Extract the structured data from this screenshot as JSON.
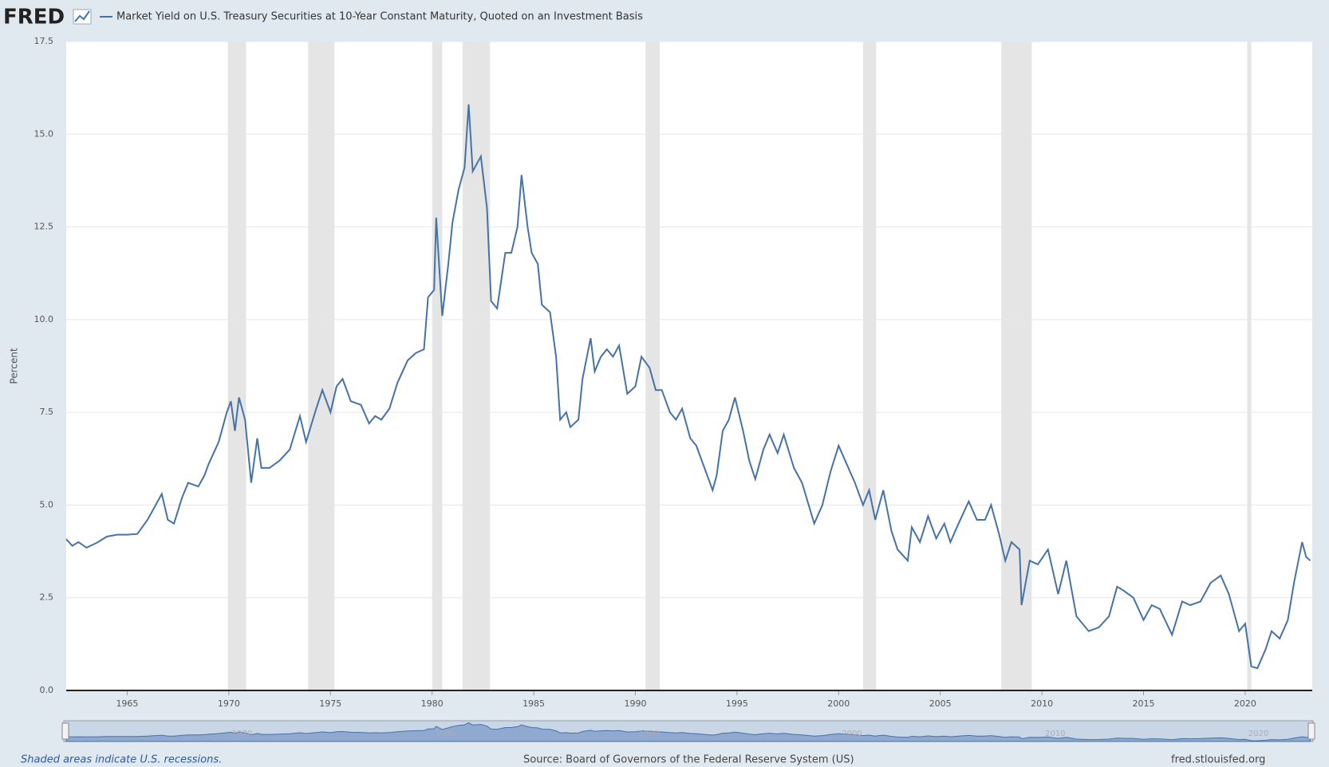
{
  "header": {
    "logo": "FRED"
  },
  "chart_data": {
    "type": "line",
    "y_axis_label": "Percent",
    "series": [
      {
        "name": "Market Yield on U.S. Treasury Securities at 10-Year Constant Maturity, Quoted on an Investment Basis",
        "color": "#4572a7",
        "x": [
          1962.0,
          1962.3,
          1962.6,
          1963.0,
          1963.5,
          1964.0,
          1964.5,
          1965.0,
          1965.5,
          1966.0,
          1966.3,
          1966.7,
          1967.0,
          1967.3,
          1967.7,
          1968.0,
          1968.5,
          1968.8,
          1969.0,
          1969.5,
          1969.9,
          1970.1,
          1970.3,
          1970.5,
          1970.8,
          1971.1,
          1971.4,
          1971.6,
          1972.0,
          1972.5,
          1973.0,
          1973.5,
          1973.8,
          1974.3,
          1974.6,
          1975.0,
          1975.3,
          1975.6,
          1976.0,
          1976.5,
          1976.9,
          1977.2,
          1977.5,
          1977.9,
          1978.3,
          1978.8,
          1979.2,
          1979.6,
          1979.8,
          1980.1,
          1980.2,
          1980.5,
          1980.8,
          1981.0,
          1981.3,
          1981.6,
          1981.8,
          1982.0,
          1982.4,
          1982.7,
          1982.9,
          1983.2,
          1983.6,
          1983.9,
          1984.2,
          1984.4,
          1984.7,
          1984.9,
          1985.2,
          1985.4,
          1985.8,
          1986.1,
          1986.3,
          1986.6,
          1986.8,
          1987.2,
          1987.4,
          1987.8,
          1988.0,
          1988.3,
          1988.6,
          1988.9,
          1989.2,
          1989.6,
          1990.0,
          1990.3,
          1990.7,
          1991.0,
          1991.3,
          1991.7,
          1992.0,
          1992.3,
          1992.7,
          1993.0,
          1993.4,
          1993.8,
          1994.0,
          1994.3,
          1994.6,
          1994.9,
          1995.3,
          1995.6,
          1995.9,
          1996.3,
          1996.6,
          1997.0,
          1997.3,
          1997.8,
          1998.2,
          1998.8,
          1999.2,
          1999.6,
          2000.0,
          2000.4,
          2000.8,
          2001.2,
          2001.5,
          2001.8,
          2002.0,
          2002.2,
          2002.6,
          2002.9,
          2003.4,
          2003.6,
          2004.0,
          2004.4,
          2004.8,
          2005.2,
          2005.5,
          2005.9,
          2006.4,
          2006.8,
          2007.2,
          2007.5,
          2007.9,
          2008.2,
          2008.5,
          2008.9,
          2009.0,
          2009.4,
          2009.8,
          2010.3,
          2010.8,
          2011.2,
          2011.7,
          2012.3,
          2012.8,
          2013.3,
          2013.7,
          2014.0,
          2014.5,
          2015.0,
          2015.4,
          2015.8,
          2016.4,
          2016.9,
          2017.3,
          2017.8,
          2018.3,
          2018.8,
          2019.2,
          2019.7,
          2020.0,
          2020.3,
          2020.6,
          2021.0,
          2021.3,
          2021.7,
          2022.1,
          2022.4,
          2022.8,
          2023.0,
          2023.2
        ],
        "values": [
          4.08,
          3.9,
          4.0,
          3.85,
          3.98,
          4.15,
          4.2,
          4.2,
          4.22,
          4.6,
          4.9,
          5.3,
          4.6,
          4.5,
          5.2,
          5.6,
          5.5,
          5.8,
          6.1,
          6.7,
          7.5,
          7.8,
          7.0,
          7.9,
          7.3,
          5.6,
          6.8,
          6.0,
          6.0,
          6.2,
          6.5,
          7.4,
          6.7,
          7.6,
          8.1,
          7.5,
          8.2,
          8.4,
          7.8,
          7.7,
          7.2,
          7.4,
          7.3,
          7.6,
          8.3,
          8.9,
          9.1,
          9.2,
          10.6,
          10.8,
          12.75,
          10.1,
          11.5,
          12.6,
          13.5,
          14.1,
          15.8,
          14.0,
          14.4,
          13.0,
          10.5,
          10.3,
          11.8,
          11.8,
          12.5,
          13.9,
          12.5,
          11.8,
          11.5,
          10.4,
          10.2,
          9.0,
          7.3,
          7.5,
          7.1,
          7.3,
          8.4,
          9.5,
          8.6,
          9.0,
          9.2,
          9.0,
          9.3,
          8.0,
          8.2,
          9.0,
          8.7,
          8.1,
          8.1,
          7.5,
          7.3,
          7.6,
          6.8,
          6.6,
          6.0,
          5.4,
          5.8,
          7.0,
          7.3,
          7.9,
          7.0,
          6.2,
          5.7,
          6.5,
          6.9,
          6.4,
          6.9,
          6.0,
          5.6,
          4.5,
          5.0,
          5.9,
          6.6,
          6.1,
          5.6,
          5.0,
          5.4,
          4.6,
          5.0,
          5.4,
          4.3,
          3.8,
          3.5,
          4.4,
          4.0,
          4.7,
          4.1,
          4.5,
          4.0,
          4.5,
          5.1,
          4.6,
          4.6,
          5.0,
          4.2,
          3.5,
          4.0,
          3.8,
          2.3,
          3.5,
          3.4,
          3.8,
          2.6,
          3.5,
          2.0,
          1.6,
          1.7,
          2.0,
          2.8,
          2.7,
          2.5,
          1.9,
          2.3,
          2.2,
          1.5,
          2.4,
          2.3,
          2.4,
          2.9,
          3.1,
          2.6,
          1.6,
          1.8,
          0.65,
          0.6,
          1.1,
          1.6,
          1.4,
          1.9,
          2.9,
          4.0,
          3.6,
          3.5
        ]
      }
    ],
    "recessions": [
      [
        1969.95,
        1970.85
      ],
      [
        1973.9,
        1975.2
      ],
      [
        1980.0,
        1980.5
      ],
      [
        1981.5,
        1982.85
      ],
      [
        1990.5,
        1991.2
      ],
      [
        2001.2,
        2001.85
      ],
      [
        2008.0,
        2009.5
      ],
      [
        2020.1,
        2020.3
      ]
    ],
    "xlim": [
      1962.0,
      2023.3
    ],
    "xticks": [
      1965,
      1970,
      1975,
      1980,
      1985,
      1990,
      1995,
      2000,
      2005,
      2010,
      2015,
      2020
    ],
    "ylim": [
      0,
      17.5
    ],
    "yticks": [
      {
        "value": 0,
        "label": "0.0"
      },
      {
        "value": 2.5,
        "label": "2.5"
      },
      {
        "value": 5,
        "label": "5.0"
      },
      {
        "value": 7.5,
        "label": "7.5"
      },
      {
        "value": 10,
        "label": "10.0"
      },
      {
        "value": 12.5,
        "label": "12.5"
      },
      {
        "value": 15,
        "label": "15.0"
      },
      {
        "value": 17.5,
        "label": "17.5"
      }
    ],
    "grid": true
  },
  "footer": {
    "note": "Shaded areas indicate U.S. recessions.",
    "source": "Source: Board of Governors of the Federal Reserve System (US)",
    "site": "fred.stlouisfed.org"
  }
}
